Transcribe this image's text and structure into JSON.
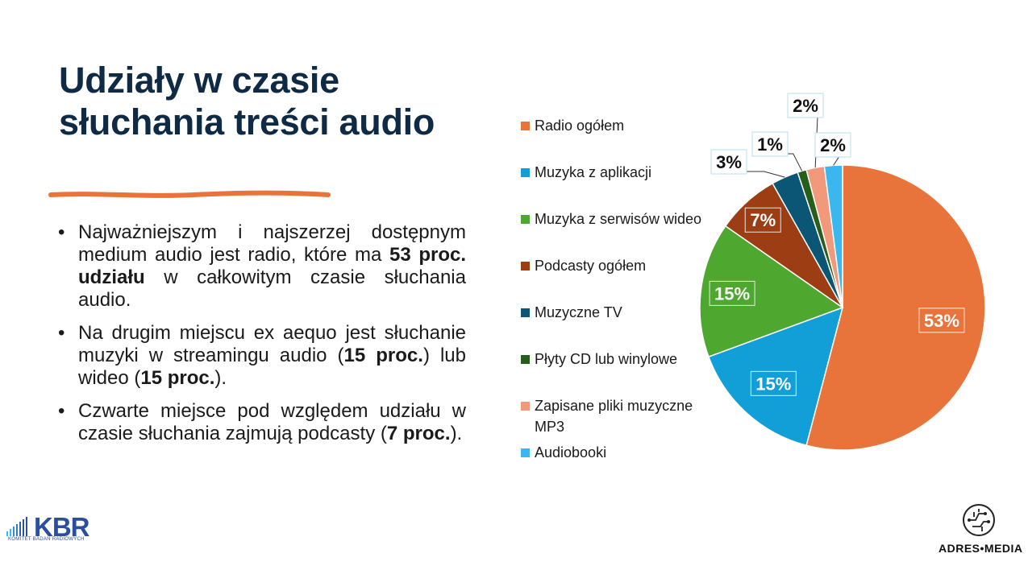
{
  "slide": {
    "title_line1": "Udziały w czasie",
    "title_line2": "słuchania treści audio",
    "bullets": [
      {
        "parts": [
          {
            "text": "Najważniejszym i najszerzej dostępnym medium audio jest radio, które ma ",
            "bold": false
          },
          {
            "text": "53 proc. udziału",
            "bold": true
          },
          {
            "text": " w całkowitym czasie słuchania audio.",
            "bold": false
          }
        ]
      },
      {
        "parts": [
          {
            "text": "Na drugim miejscu ex aequo jest słuchanie muzyki w streamingu audio (",
            "bold": false
          },
          {
            "text": "15 proc.",
            "bold": true
          },
          {
            "text": ") lub wideo (",
            "bold": false
          },
          {
            "text": "15 proc.",
            "bold": true
          },
          {
            "text": ").",
            "bold": false
          }
        ]
      },
      {
        "parts": [
          {
            "text": "Czwarte miejsce pod względem udziału w czasie słuchania zajmują podcasty (",
            "bold": false
          },
          {
            "text": "7 proc.",
            "bold": true
          },
          {
            "text": ").",
            "bold": false
          }
        ]
      }
    ],
    "accent_color": "#e8743b"
  },
  "chart_data": {
    "type": "pie",
    "title": "",
    "legend_position": "left",
    "series": [
      {
        "name": "Radio ogółem",
        "value": 53,
        "label": "53%",
        "color": "#e8743b"
      },
      {
        "name": "Muzyka z aplikacji",
        "value": 15,
        "label": "15%",
        "color": "#129fd7"
      },
      {
        "name": "Muzyka z serwisów wideo",
        "value": 15,
        "label": "15%",
        "color": "#4ea72e"
      },
      {
        "name": "Podcasty ogółem",
        "value": 7,
        "label": "7%",
        "color": "#9c3d14"
      },
      {
        "name": "Muzyczne TV",
        "value": 3,
        "label": "3%",
        "color": "#0b5575"
      },
      {
        "name": "Płyty CD lub winylowe",
        "value": 1,
        "label": "1%",
        "color": "#275e1c"
      },
      {
        "name": "Zapisane pliki muzyczne MP3",
        "value": 2,
        "label": "2%",
        "color": "#f1997a"
      },
      {
        "name": "Audiobooki",
        "value": 2,
        "label": "2%",
        "color": "#3ab7ef"
      }
    ]
  },
  "logos": {
    "kbr_text": "KBR",
    "kbr_subtitle": "KOMITET BADAŃ RADIOWYCH",
    "kbr_color": "#2b4f9e",
    "adres_text": "ADRES•MEDIA"
  }
}
